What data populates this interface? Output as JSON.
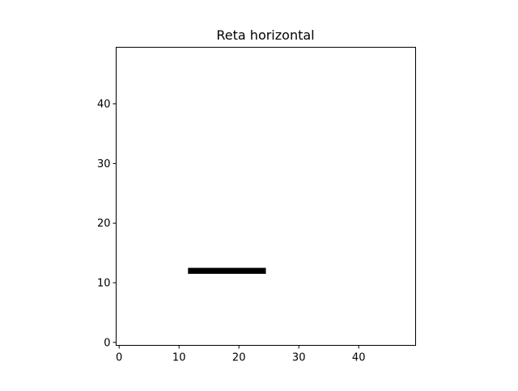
{
  "chart_data": {
    "type": "image",
    "title": "Reta horizontal",
    "xlabel": "",
    "ylabel": "",
    "xlim": [
      -0.5,
      49.5
    ],
    "ylim": [
      -0.5,
      49.5
    ],
    "y_inverted": false,
    "grid": false,
    "xticks": [
      0,
      10,
      20,
      30,
      40
    ],
    "yticks": [
      0,
      10,
      20,
      30,
      40
    ],
    "segments": [
      {
        "row": 12,
        "x_start": 12,
        "x_end": 24,
        "color": "#000000"
      }
    ],
    "background_color": "#ffffff"
  }
}
